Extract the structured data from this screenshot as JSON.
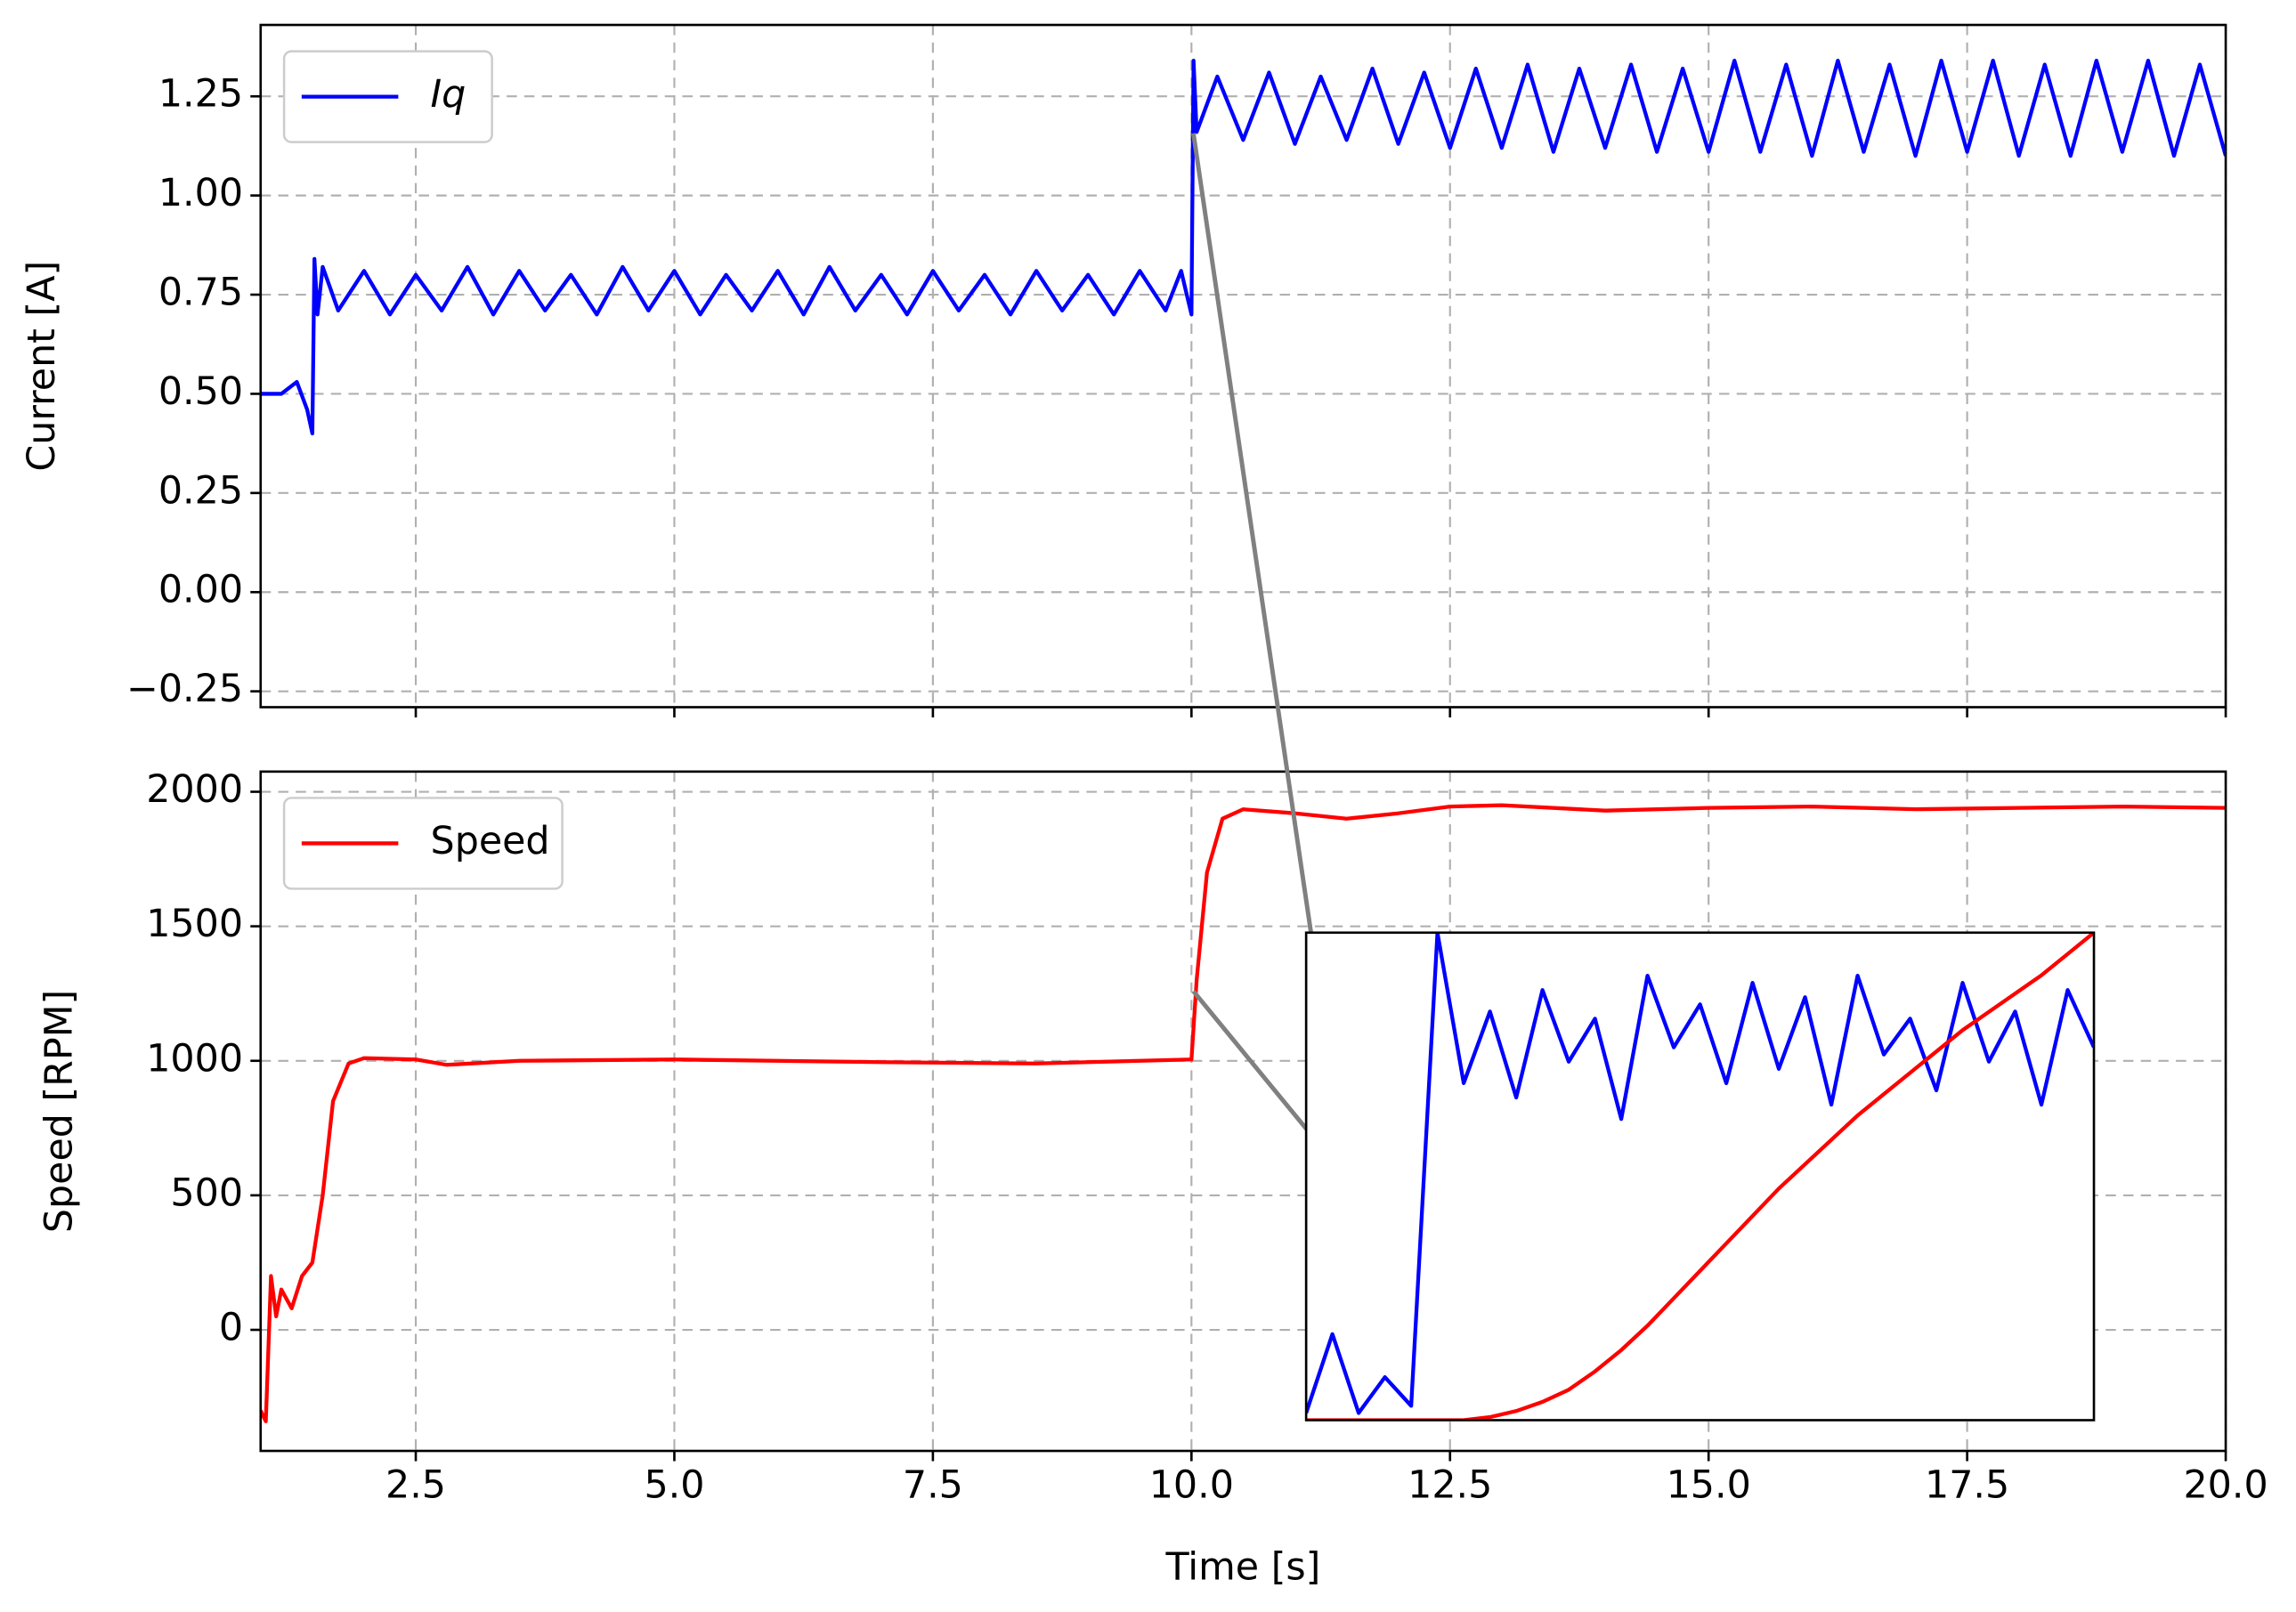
{
  "chart_data": [
    {
      "type": "line",
      "ylabel": "Current [A]",
      "xlim": [
        1,
        20
      ],
      "ylim": [
        -0.29,
        1.43
      ],
      "grid": true,
      "legend": "upper left",
      "xticks": [
        2.5,
        5,
        7.5,
        10,
        12.5,
        15,
        17.5,
        20
      ],
      "yticks": [
        {
          "value": -0.25,
          "label": "−0.25"
        },
        {
          "value": 0,
          "label": "0.00"
        },
        0.25,
        {
          "value": 0.5,
          "label": "0.50"
        },
        0.75,
        {
          "value": 1,
          "label": "1.00"
        },
        1.25
      ],
      "x": [
        1.0,
        1.2,
        1.35,
        1.45,
        1.5,
        1.52,
        1.55,
        1.6,
        1.75,
        2,
        2.25,
        2.5,
        2.75,
        3,
        3.25,
        3.5,
        3.75,
        4,
        4.25,
        4.5,
        4.75,
        5,
        5.25,
        5.5,
        5.75,
        6,
        6.25,
        6.5,
        6.75,
        7,
        7.25,
        7.5,
        7.75,
        8,
        8.25,
        8.5,
        8.75,
        9,
        9.25,
        9.5,
        9.75,
        9.9,
        10.0,
        10.02,
        10.05,
        10.25,
        10.5,
        10.75,
        11,
        11.25,
        11.5,
        11.75,
        12,
        12.25,
        12.5,
        12.75,
        13,
        13.25,
        13.5,
        13.75,
        14,
        14.25,
        14.5,
        14.75,
        15,
        15.25,
        15.5,
        15.75,
        16,
        16.25,
        16.5,
        16.75,
        17,
        17.25,
        17.5,
        17.75,
        18,
        18.25,
        18.5,
        18.75,
        19,
        19.25,
        19.5,
        19.75,
        20
      ],
      "series": [
        {
          "name": "Iq",
          "color": "#0000ff",
          "values": [
            0.5,
            0.5,
            0.53,
            0.46,
            0.4,
            0.84,
            0.7,
            0.82,
            0.71,
            0.81,
            0.7,
            0.8,
            0.71,
            0.82,
            0.7,
            0.81,
            0.71,
            0.8,
            0.7,
            0.82,
            0.71,
            0.81,
            0.7,
            0.8,
            0.71,
            0.81,
            0.7,
            0.82,
            0.71,
            0.8,
            0.7,
            0.81,
            0.71,
            0.8,
            0.7,
            0.81,
            0.71,
            0.8,
            0.7,
            0.81,
            0.71,
            0.81,
            0.7,
            1.34,
            1.16,
            1.3,
            1.14,
            1.31,
            1.13,
            1.3,
            1.14,
            1.32,
            1.13,
            1.31,
            1.12,
            1.32,
            1.12,
            1.33,
            1.11,
            1.32,
            1.12,
            1.33,
            1.11,
            1.32,
            1.11,
            1.34,
            1.11,
            1.33,
            1.1,
            1.34,
            1.11,
            1.33,
            1.1,
            1.34,
            1.11,
            1.34,
            1.1,
            1.33,
            1.1,
            1.34,
            1.11,
            1.34,
            1.1,
            1.33,
            1.1
          ]
        }
      ]
    },
    {
      "type": "line",
      "xlabel": "Time [s]",
      "ylabel": "Speed [RPM]",
      "xlim": [
        1,
        20
      ],
      "ylim": [
        -450,
        2075
      ],
      "grid": true,
      "legend": "upper left",
      "xticks": [
        2.5,
        {
          "value": 5,
          "label": "5.0"
        },
        7.5,
        {
          "value": 10,
          "label": "10.0"
        },
        12.5,
        {
          "value": 15,
          "label": "15.0"
        },
        17.5,
        {
          "value": 20,
          "label": "20.0"
        }
      ],
      "yticks": [
        0,
        500,
        1000,
        1500,
        2000
      ],
      "x": [
        1.0,
        1.05,
        1.1,
        1.15,
        1.2,
        1.3,
        1.4,
        1.5,
        1.6,
        1.7,
        1.85,
        2.0,
        2.5,
        2.8,
        3.5,
        5,
        7,
        8.5,
        9.5,
        10,
        10.05,
        10.15,
        10.3,
        10.5,
        11,
        11.5,
        12,
        12.5,
        13,
        14,
        15,
        16,
        17,
        18,
        19,
        20
      ],
      "series": [
        {
          "name": "Speed",
          "color": "#ff0000",
          "values": [
            -300,
            -340,
            200,
            50,
            150,
            80,
            200,
            250,
            500,
            850,
            990,
            1010,
            1005,
            985,
            1000,
            1005,
            995,
            990,
            1000,
            1005,
            1300,
            1700,
            1900,
            1935,
            1920,
            1900,
            1920,
            1945,
            1950,
            1930,
            1940,
            1945,
            1935,
            1940,
            1945,
            1940
          ]
        }
      ]
    },
    {
      "type": "line",
      "xlim": [
        9.95,
        10.25
      ],
      "ylim": [
        0.68,
        1.36
      ],
      "y2lim": [
        1000,
        1800
      ],
      "x": [
        9.95,
        9.96,
        9.97,
        9.98,
        9.99,
        10.0,
        10.01,
        10.02,
        10.03,
        10.04,
        10.05,
        10.06,
        10.07,
        10.08,
        10.09,
        10.1,
        10.11,
        10.12,
        10.13,
        10.14,
        10.15,
        10.16,
        10.17,
        10.18,
        10.19,
        10.2,
        10.21,
        10.22,
        10.23,
        10.24,
        10.25
      ],
      "series": [
        {
          "color": "#0000ff",
          "values": [
            0.69,
            0.8,
            0.69,
            0.74,
            0.7,
            1.36,
            1.15,
            1.25,
            1.13,
            1.28,
            1.18,
            1.24,
            1.1,
            1.3,
            1.2,
            1.26,
            1.15,
            1.29,
            1.17,
            1.27,
            1.12,
            1.3,
            1.19,
            1.24,
            1.14,
            1.29,
            1.18,
            1.25,
            1.12,
            1.28,
            1.2
          ]
        },
        {
          "color": "#ff0000",
          "axis": "y2",
          "values": [
            1000,
            1000,
            1000,
            1000,
            1000,
            1000,
            1000,
            1005,
            1015,
            1030,
            1050,
            1080,
            1115,
            1155,
            1200,
            1245,
            1290,
            1335,
            1380,
            1420,
            1460,
            1500,
            1535,
            1570,
            1605,
            1640,
            1670,
            1700,
            1730,
            1765,
            1800
          ]
        }
      ]
    }
  ]
}
